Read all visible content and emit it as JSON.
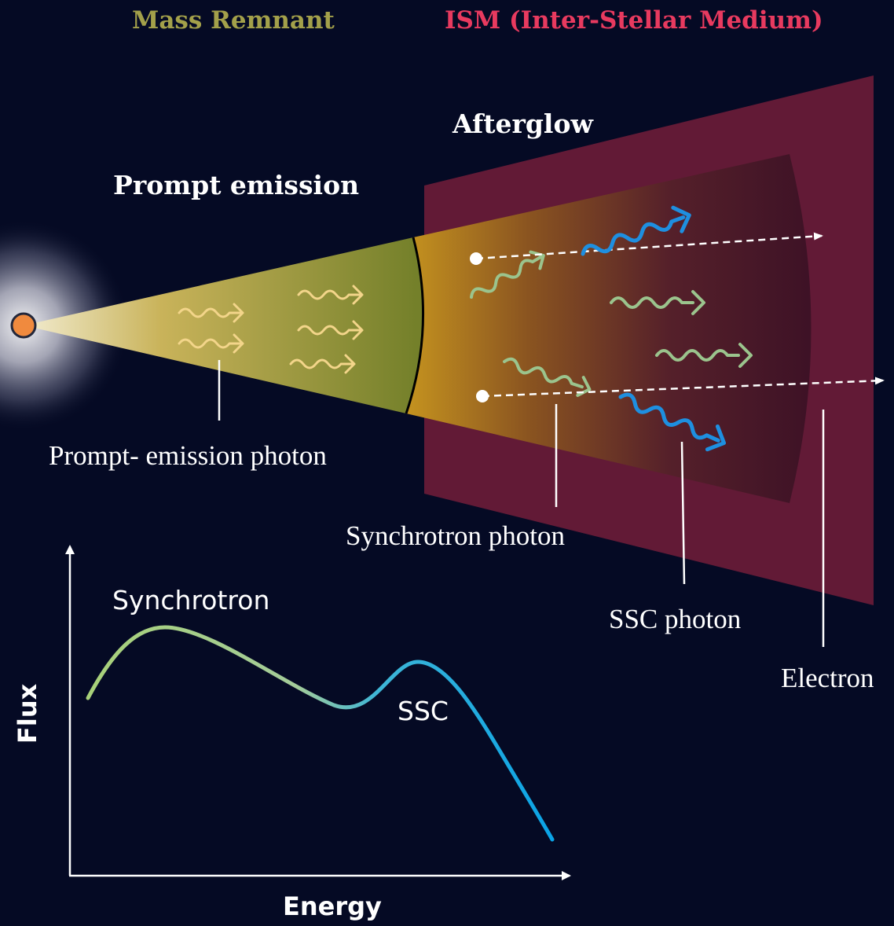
{
  "headers": {
    "mass_remnant": "Mass Remnant",
    "ism": "ISM (Inter-Stellar Medium)"
  },
  "regions": {
    "prompt_emission": "Prompt emission",
    "afterglow": "Afterglow"
  },
  "labels": {
    "prompt_photon": "Prompt- emission photon",
    "synchrotron_photon": "Synchrotron photon",
    "ssc_photon": "SSC photon",
    "electron": "Electron"
  },
  "spectrum": {
    "synchrotron": "Synchrotron",
    "ssc": "SSC",
    "y_axis": "Flux",
    "x_axis": "Energy"
  },
  "colors": {
    "background": "#050a24",
    "mass_remnant": "#a3a04a",
    "ism": "#e83a5f",
    "ism_slab": "#621a36",
    "prompt_photon": "#f3d58a",
    "synchrotron_photon": "#9bc48d",
    "ssc_photon": "#1e8fe0"
  }
}
